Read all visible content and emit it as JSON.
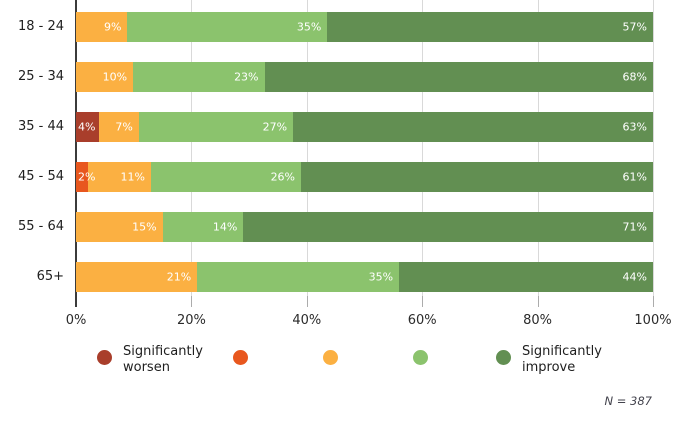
{
  "chart_data": {
    "type": "bar",
    "orientation": "horizontal",
    "stacked": true,
    "categories": [
      "18 - 24",
      "25 - 34",
      "35 - 44",
      "45 - 54",
      "55 - 64",
      "65+"
    ],
    "series": [
      {
        "legend_label": "Significantly worsen",
        "color": "#A93E2B",
        "values": [
          0,
          0,
          4,
          0,
          0,
          0
        ]
      },
      {
        "legend_label": "",
        "color": "#E8571E",
        "values": [
          0,
          0,
          0,
          2,
          0,
          0
        ]
      },
      {
        "legend_label": "",
        "color": "#FBB042",
        "values": [
          9,
          10,
          7,
          11,
          15,
          21
        ]
      },
      {
        "legend_label": "",
        "color": "#8BC36D",
        "values": [
          35,
          23,
          27,
          26,
          14,
          35
        ]
      },
      {
        "legend_label": "Significantly improve",
        "color": "#628F52",
        "values": [
          57,
          68,
          63,
          61,
          71,
          44
        ]
      }
    ],
    "x_ticks": [
      "0%",
      "20%",
      "40%",
      "60%",
      "80%",
      "100%"
    ],
    "xlim": [
      0,
      100
    ],
    "value_suffix": "%",
    "legend_position": "bottom",
    "note": "N = 387"
  },
  "colors": {
    "gridline": "#D9D9D9",
    "axis_tick": "#ACACAC",
    "axis_line": "#3B3B3B",
    "bar_label": "#FFFFFF",
    "category_text": "#1E1E1E",
    "note_text": "#43434D"
  }
}
